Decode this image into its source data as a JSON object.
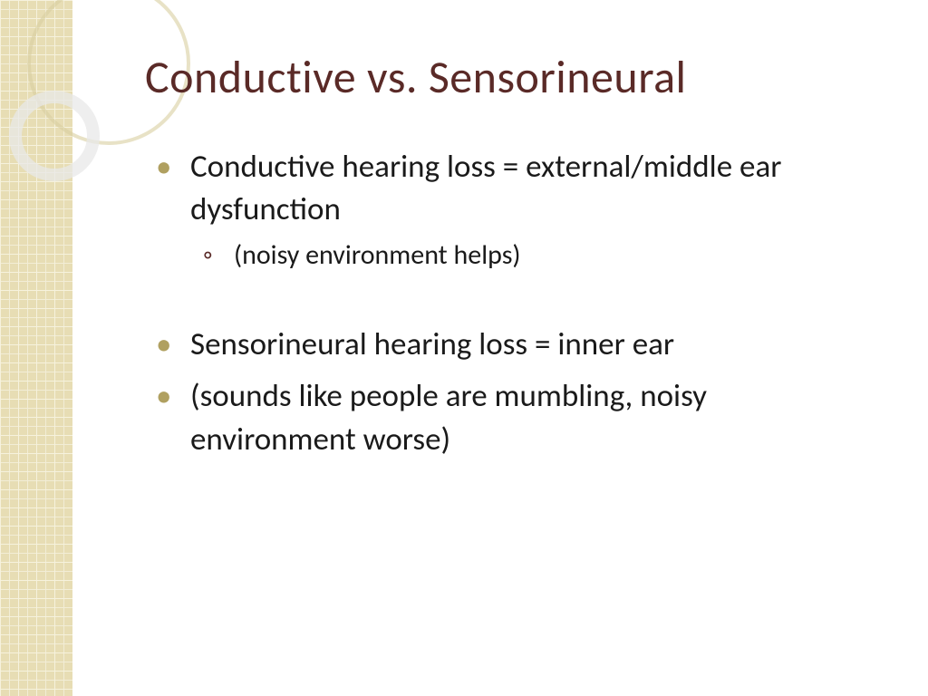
{
  "colors": {
    "title": "#5a2a27",
    "body_text": "#1a1a1a",
    "bullet_accent": "#b0a060",
    "sub_bullet": "#5a2a27",
    "sidebar_base": "#e3d8a8",
    "background": "#ffffff"
  },
  "typography": {
    "title_fontsize": 50,
    "body_fontsize": 35,
    "sub_fontsize": 30,
    "font_family": "Gill Sans"
  },
  "slide": {
    "title": "Conductive vs. Sensorineural",
    "bullets": [
      {
        "text": "Conductive hearing loss = external/middle ear dysfunction",
        "sub": [
          {
            "text": "(noisy environment helps)"
          }
        ]
      },
      {
        "text": "Sensorineural hearing loss =  inner ear"
      },
      {
        "text": " (sounds like people are mumbling,  noisy environment worse)"
      }
    ]
  }
}
